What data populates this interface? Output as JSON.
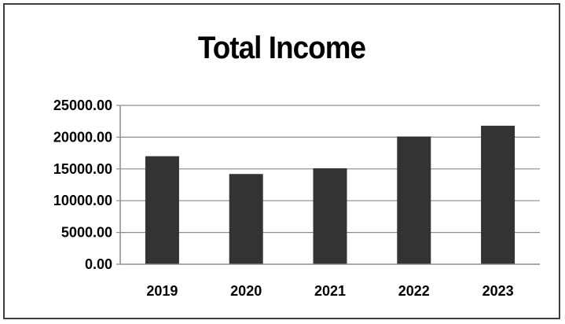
{
  "chart_data": {
    "type": "bar",
    "title": "Total Income",
    "categories": [
      "2019",
      "2020",
      "2021",
      "2022",
      "2023"
    ],
    "values": [
      17000,
      14200,
      15100,
      20100,
      21800
    ],
    "ylim": [
      0,
      25000
    ],
    "yticks": [
      "0.00",
      "5000.00",
      "10000.00",
      "15000.00",
      "20000.00",
      "25000.00"
    ],
    "xlabel": "",
    "ylabel": "",
    "grid": true,
    "bar_color": "#333333",
    "grid_color": "#8c8c8c"
  }
}
